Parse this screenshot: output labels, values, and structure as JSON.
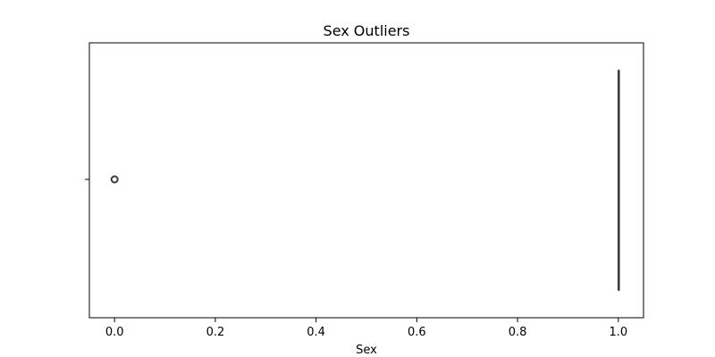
{
  "chart_data": {
    "type": "box",
    "title": "Sex Outliers",
    "xlabel": "Sex",
    "ylabel": "",
    "xlim": [
      -0.05,
      1.05
    ],
    "xticks": [
      0.0,
      0.2,
      0.4,
      0.6,
      0.8,
      1.0
    ],
    "xtick_labels": [
      "0.0",
      "0.2",
      "0.4",
      "0.6",
      "0.8",
      "1.0"
    ],
    "grid": false,
    "boxes": [
      {
        "min": 1.0,
        "q1": 1.0,
        "median": 1.0,
        "q3": 1.0,
        "max": 1.0,
        "outliers": [
          0.0
        ]
      }
    ],
    "colors": {
      "box": "#3a3a3a",
      "outlier_edge": "#3a3a3a",
      "axes": "#000000"
    }
  }
}
